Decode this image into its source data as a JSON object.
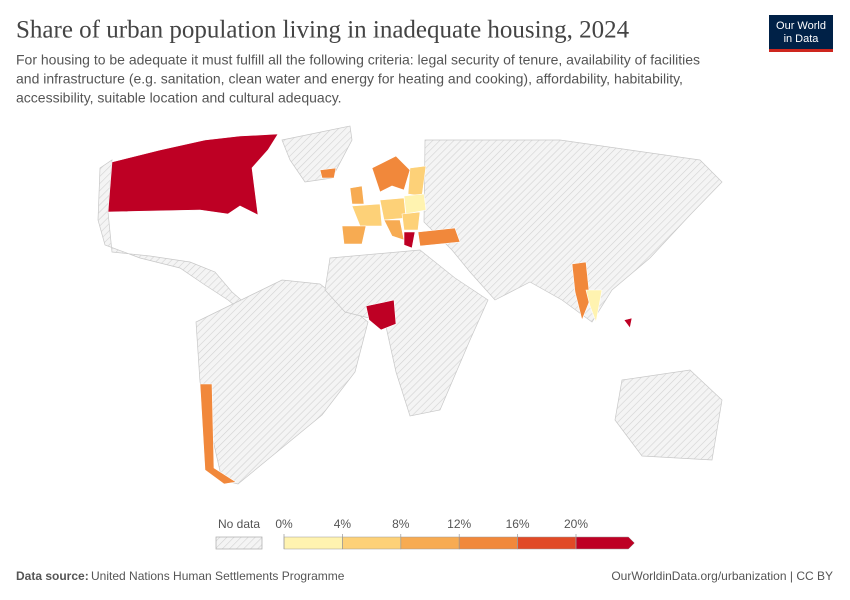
{
  "header": {
    "title": "Share of urban population living in inadequate housing, 2024",
    "subtitle": [
      "For housing to be adequate it must fulfill all the following criteria: legal security of tenure, availability of facilities",
      "and infrastructure (e.g. sanitation, clean water and energy for heating and cooking), affordability, habitability,",
      "accessibility, suitable location and cultural adequacy."
    ],
    "logo": [
      "Our World",
      "in Data"
    ]
  },
  "legend": {
    "no_data": "No data",
    "ticks": [
      {
        "value": 0,
        "label": "0%"
      },
      {
        "value": 4,
        "label": "4%"
      },
      {
        "value": 8,
        "label": "8%"
      },
      {
        "value": 12,
        "label": "12%"
      },
      {
        "value": 16,
        "label": "16%"
      },
      {
        "value": 20,
        "label": "20%"
      }
    ],
    "colors": [
      "#fff3b0",
      "#fdd178",
      "#f7ab52",
      "#f1883b",
      "#e14a26",
      "#be0024"
    ]
  },
  "footer": {
    "source_label": "Data source:",
    "source": "United Nations Human Settlements Programme",
    "url": "OurWorldinData.org/urbanization | CC BY"
  }
}
